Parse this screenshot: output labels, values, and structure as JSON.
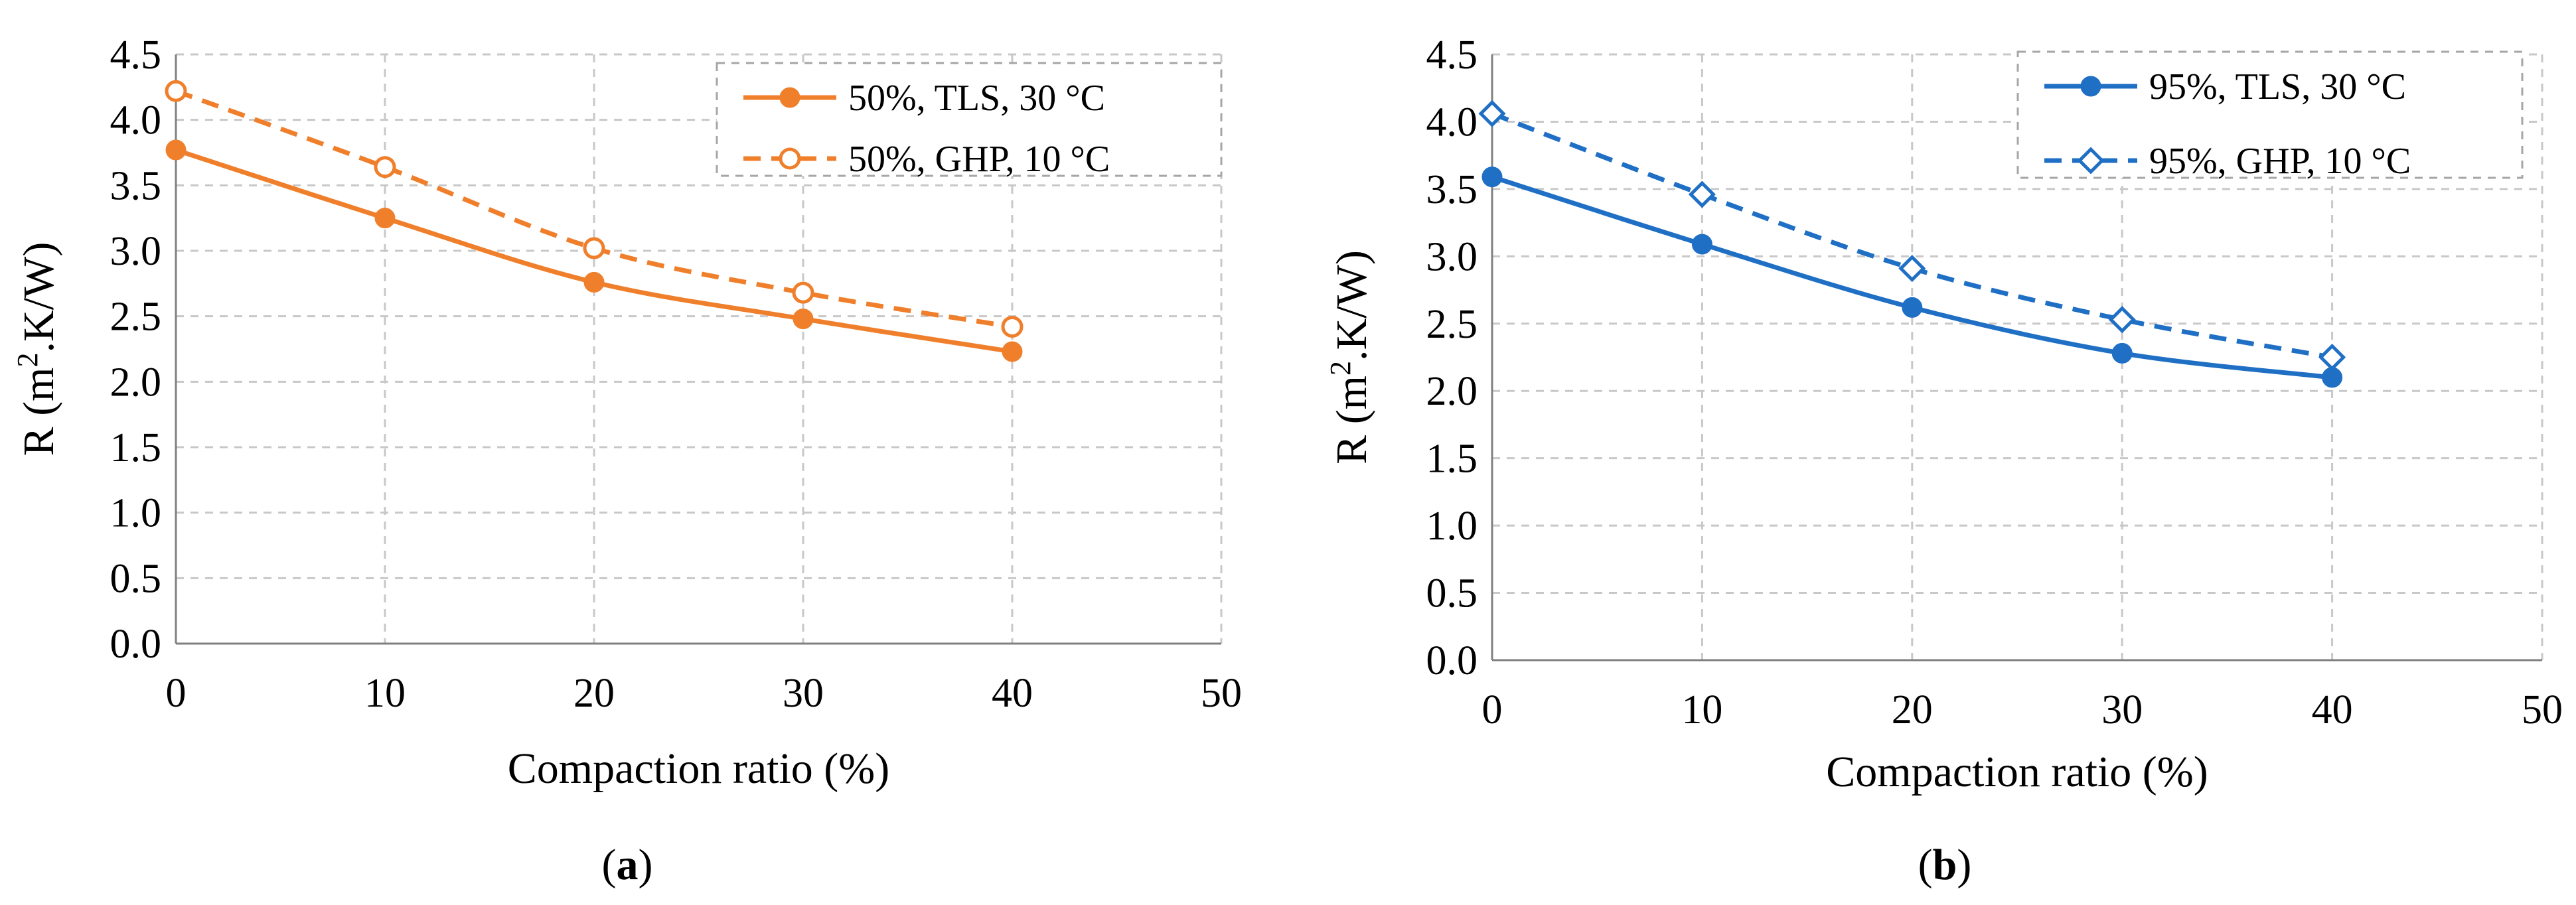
{
  "chart_data": [
    {
      "type": "line",
      "panel_label": "a",
      "xlabel": "Compaction ratio (%)",
      "ylabel_prefix": "R (m",
      "ylabel_sup": "2",
      "ylabel_suffix": ".K/W)",
      "xlim": [
        0,
        50
      ],
      "ylim": [
        0,
        4.5
      ],
      "xticks": [
        0,
        10,
        20,
        30,
        40,
        50
      ],
      "yticks": [
        0.0,
        0.5,
        1.0,
        1.5,
        2.0,
        2.5,
        3.0,
        3.5,
        4.0,
        4.5
      ],
      "ytick_labels": [
        "0.0",
        "0.5",
        "1.0",
        "1.5",
        "2.0",
        "2.5",
        "3.0",
        "3.5",
        "4.0",
        "4.5"
      ],
      "grid": true,
      "legend_position": "top-right",
      "series": [
        {
          "name": "50%, TLS, 30 °C",
          "color": "#f07f2c",
          "dashed": false,
          "marker": "filled-circle",
          "x": [
            0,
            10,
            20,
            30,
            40
          ],
          "y": [
            3.77,
            3.25,
            2.76,
            2.48,
            2.23
          ]
        },
        {
          "name": "50%, GHP, 10 °C",
          "color": "#f07f2c",
          "dashed": true,
          "marker": "open-circle",
          "x": [
            0,
            10,
            20,
            30,
            40
          ],
          "y": [
            4.22,
            3.64,
            3.02,
            2.68,
            2.42
          ]
        }
      ]
    },
    {
      "type": "line",
      "panel_label": "b",
      "xlabel": "Compaction ratio (%)",
      "ylabel_prefix": "R (m",
      "ylabel_sup": "2",
      "ylabel_suffix": ".K/W)",
      "xlim": [
        0,
        50
      ],
      "ylim": [
        0,
        4.5
      ],
      "xticks": [
        0,
        10,
        20,
        30,
        40,
        50
      ],
      "yticks": [
        0.0,
        0.5,
        1.0,
        1.5,
        2.0,
        2.5,
        3.0,
        3.5,
        4.0,
        4.5
      ],
      "ytick_labels": [
        "0.0",
        "0.5",
        "1.0",
        "1.5",
        "2.0",
        "2.5",
        "3.0",
        "3.5",
        "4.0",
        "4.5"
      ],
      "grid": true,
      "legend_position": "top-right",
      "series": [
        {
          "name": "95%, TLS, 30 °C",
          "color": "#1f6fc5",
          "dashed": false,
          "marker": "filled-circle",
          "x": [
            0,
            10,
            20,
            30,
            40
          ],
          "y": [
            3.59,
            3.09,
            2.62,
            2.28,
            2.1
          ]
        },
        {
          "name": "95%, GHP, 10 °C",
          "color": "#1f6fc5",
          "dashed": true,
          "marker": "open-diamond",
          "x": [
            0,
            10,
            20,
            30,
            40
          ],
          "y": [
            4.06,
            3.46,
            2.91,
            2.53,
            2.25
          ]
        }
      ]
    }
  ]
}
